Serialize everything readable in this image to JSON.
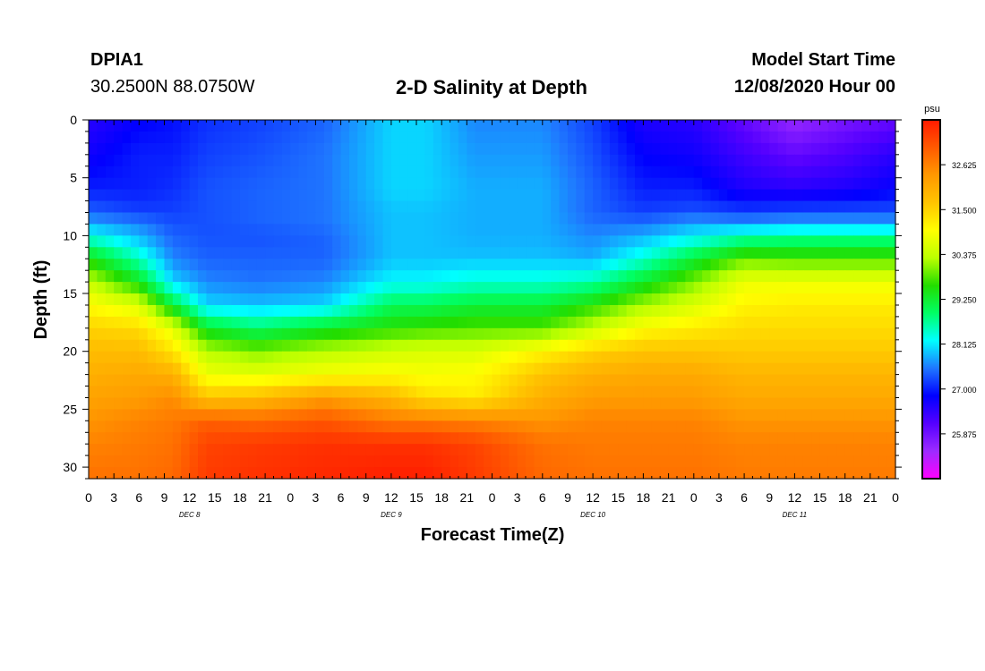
{
  "header": {
    "station": "DPIA1",
    "coords": "30.2500N 88.0750W",
    "title": "2-D Salinity at Depth",
    "model_label": "Model Start Time",
    "model_time": "12/08/2020 Hour 00"
  },
  "chart_data": {
    "type": "heatmap",
    "title": "2-D Salinity at Depth",
    "xlabel": "Forecast Time(Z)",
    "ylabel": "Depth (ft)",
    "x_ticks": [
      "0",
      "3",
      "6",
      "9",
      "12",
      "15",
      "18",
      "21",
      "0",
      "3",
      "6",
      "9",
      "12",
      "15",
      "18",
      "21",
      "0",
      "3",
      "6",
      "9",
      "12",
      "15",
      "18",
      "21",
      "0",
      "3",
      "6",
      "9",
      "12",
      "15",
      "18",
      "21",
      "0"
    ],
    "x_range_hours": [
      0,
      96
    ],
    "day_labels": [
      {
        "text": "DEC 8",
        "hour": 12
      },
      {
        "text": "DEC 9",
        "hour": 36
      },
      {
        "text": "DEC 10",
        "hour": 60
      },
      {
        "text": "DEC 11",
        "hour": 84
      }
    ],
    "y_range_ft": [
      0,
      31
    ],
    "y_ticks": [
      "0",
      "5",
      "10",
      "15",
      "20",
      "25",
      "30"
    ],
    "colorbar": {
      "unit": "psu",
      "range": [
        24.75,
        33.75
      ],
      "tick_labels": [
        "32.625",
        "31.500",
        "30.375",
        "29.250",
        "28.125",
        "27.000",
        "25.875"
      ],
      "tick_values": [
        32.625,
        31.5,
        30.375,
        29.25,
        28.125,
        27.0,
        25.875
      ],
      "colors": [
        "#ff00ff",
        "#9d2bff",
        "#5500ff",
        "#0000ff",
        "#1f77ff",
        "#00ffff",
        "#00ff64",
        "#22dd00",
        "#bbff00",
        "#ffff00",
        "#ffc400",
        "#ff9800",
        "#ff5a00",
        "#ff1a00"
      ]
    },
    "grid_hours": [
      0,
      6,
      10,
      14,
      20,
      28,
      36,
      40,
      46,
      54,
      60,
      66,
      72,
      78,
      84,
      90,
      96
    ],
    "grid_depths_ft": [
      0,
      3,
      6,
      8,
      9,
      10,
      12,
      14,
      16,
      18,
      20,
      22,
      24,
      26,
      28,
      31
    ],
    "salinity_psu": [
      [
        26.5,
        26.8,
        26.9,
        27.1,
        27.2,
        27.4,
        28.0,
        28.0,
        27.6,
        27.6,
        27.2,
        26.6,
        26.5,
        26.0,
        25.5,
        25.8,
        26.0
      ],
      [
        26.7,
        27.0,
        27.0,
        27.2,
        27.3,
        27.5,
        28.0,
        28.0,
        27.7,
        27.7,
        27.3,
        26.8,
        26.7,
        26.3,
        26.0,
        26.2,
        26.5
      ],
      [
        27.0,
        27.0,
        27.1,
        27.3,
        27.4,
        27.5,
        28.0,
        28.0,
        27.8,
        27.8,
        27.4,
        27.0,
        27.0,
        26.6,
        26.5,
        26.6,
        26.8
      ],
      [
        27.4,
        27.2,
        27.2,
        27.3,
        27.4,
        27.5,
        27.9,
        27.9,
        27.8,
        27.8,
        27.4,
        27.2,
        27.3,
        27.2,
        27.3,
        27.3,
        27.3
      ],
      [
        27.8,
        27.6,
        27.3,
        27.3,
        27.4,
        27.5,
        27.9,
        27.9,
        27.8,
        27.8,
        27.5,
        27.5,
        27.8,
        27.7,
        27.8,
        27.8,
        27.8
      ],
      [
        28.3,
        27.8,
        27.4,
        27.3,
        27.3,
        27.4,
        27.9,
        27.9,
        27.8,
        27.8,
        27.6,
        27.8,
        28.1,
        28.5,
        28.6,
        28.6,
        28.6
      ],
      [
        29.5,
        28.5,
        27.6,
        27.4,
        27.4,
        27.4,
        27.9,
        27.9,
        27.9,
        27.9,
        27.8,
        28.4,
        29.2,
        29.9,
        29.8,
        29.8,
        29.8
      ],
      [
        30.4,
        29.4,
        28.0,
        27.6,
        27.5,
        27.6,
        28.2,
        28.2,
        28.4,
        28.4,
        28.6,
        29.3,
        30.0,
        30.8,
        30.8,
        30.8,
        30.8
      ],
      [
        31.0,
        30.6,
        29.2,
        28.0,
        27.9,
        28.0,
        29.0,
        29.0,
        29.2,
        29.2,
        29.6,
        30.2,
        30.6,
        31.1,
        31.2,
        31.2,
        31.2
      ],
      [
        31.5,
        31.4,
        30.7,
        29.3,
        28.9,
        29.3,
        29.6,
        29.7,
        29.8,
        29.8,
        30.4,
        31.0,
        31.2,
        31.4,
        31.4,
        31.4,
        31.4
      ],
      [
        31.8,
        31.8,
        31.3,
        30.3,
        30.0,
        30.3,
        30.5,
        30.6,
        30.6,
        31.1,
        31.5,
        31.7,
        31.7,
        31.6,
        31.6,
        31.6,
        31.6
      ],
      [
        32.0,
        32.1,
        32.0,
        30.8,
        30.7,
        30.9,
        31.0,
        30.9,
        31.0,
        31.7,
        32.0,
        32.1,
        32.1,
        31.9,
        31.9,
        31.9,
        31.9
      ],
      [
        32.2,
        32.3,
        32.5,
        31.7,
        31.8,
        32.3,
        31.9,
        31.4,
        31.2,
        32.0,
        32.3,
        32.3,
        32.3,
        32.1,
        32.1,
        32.1,
        32.1
      ],
      [
        32.4,
        32.6,
        32.7,
        33.0,
        32.9,
        33.1,
        32.7,
        32.7,
        32.6,
        32.4,
        32.6,
        32.6,
        32.6,
        32.4,
        32.4,
        32.4,
        32.4
      ],
      [
        32.6,
        32.7,
        32.8,
        33.3,
        33.4,
        33.5,
        33.5,
        33.5,
        33.3,
        32.8,
        32.7,
        32.7,
        32.7,
        32.6,
        32.6,
        32.6,
        32.6
      ],
      [
        32.8,
        32.8,
        32.9,
        33.4,
        33.5,
        33.6,
        33.7,
        33.7,
        33.4,
        32.9,
        32.8,
        32.8,
        32.8,
        32.7,
        32.7,
        32.7,
        32.7
      ]
    ]
  }
}
